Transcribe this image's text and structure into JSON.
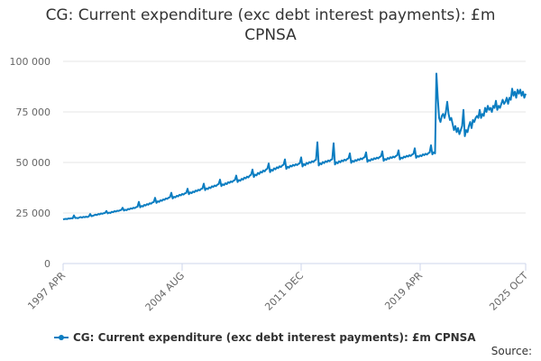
{
  "chart_data": {
    "type": "line",
    "title": "CG: Current expenditure (exc debt interest payments): £m CPNSA",
    "source": "Source:",
    "ylim": [
      0,
      100000
    ],
    "yticks": [
      0,
      {
        "value": 25000,
        "label": "25 000"
      },
      {
        "value": 50000,
        "label": "50 000"
      },
      {
        "value": 75000,
        "label": "75 000"
      },
      {
        "value": 100000,
        "label": "100 000"
      }
    ],
    "grid": true,
    "categories": [
      "1997 APR",
      null,
      null,
      null,
      null,
      null,
      null,
      null,
      null,
      null,
      null,
      null,
      null,
      null,
      null,
      null,
      null,
      null,
      null,
      null,
      null,
      null,
      null,
      null,
      null,
      null,
      null,
      null,
      null,
      null,
      null,
      null,
      null,
      null,
      null,
      null,
      null,
      null,
      null,
      null,
      null,
      null,
      null,
      null,
      null,
      null,
      null,
      null,
      null,
      null,
      null,
      null,
      null,
      null,
      null,
      null,
      null,
      null,
      null,
      null,
      null,
      null,
      null,
      null,
      null,
      null,
      null,
      null,
      null,
      null,
      null,
      null,
      null,
      null,
      null,
      null,
      null,
      null,
      null,
      null,
      null,
      null,
      null,
      null,
      null,
      null,
      null,
      null,
      "2004 AUG",
      null,
      null,
      null,
      null,
      null,
      null,
      null,
      null,
      null,
      null,
      null,
      null,
      null,
      null,
      null,
      null,
      null,
      null,
      null,
      null,
      null,
      null,
      null,
      null,
      null,
      null,
      null,
      null,
      null,
      null,
      null,
      null,
      null,
      null,
      null,
      null,
      null,
      null,
      null,
      null,
      null,
      null,
      null,
      null,
      null,
      null,
      null,
      null,
      null,
      null,
      null,
      null,
      null,
      null,
      null,
      null,
      null,
      null,
      null,
      null,
      null,
      null,
      null,
      null,
      null,
      null,
      null,
      null,
      null,
      null,
      null,
      null,
      null,
      null,
      null,
      null,
      null,
      null,
      null,
      null,
      null,
      null,
      null,
      null,
      null,
      null,
      null,
      "2011 DEC",
      null,
      null,
      null,
      null,
      null,
      null,
      null,
      null,
      null,
      null,
      null,
      null,
      null,
      null,
      null,
      null,
      null,
      null,
      null,
      null,
      null,
      null,
      null,
      null,
      null,
      null,
      null,
      null,
      null,
      null,
      null,
      null,
      null,
      null,
      null,
      null,
      null,
      null,
      null,
      null,
      null,
      null,
      null,
      null,
      null,
      null,
      null,
      null,
      null,
      null,
      null,
      null,
      null,
      null,
      null,
      null,
      null,
      null,
      null,
      null,
      null,
      null,
      null,
      null,
      null,
      null,
      null,
      null,
      null,
      null,
      null,
      null,
      null,
      null,
      null,
      null,
      null,
      null,
      null,
      null,
      null,
      null,
      null,
      null,
      null,
      null,
      null,
      "2019 APR",
      null,
      null,
      null,
      null,
      null,
      null,
      null,
      null,
      null,
      null,
      null,
      null,
      null,
      null,
      null,
      null,
      null,
      null,
      null,
      null,
      null,
      null,
      null,
      null,
      null,
      null,
      null,
      null,
      null,
      null,
      null,
      null,
      null,
      null,
      null,
      null,
      null,
      null,
      null,
      null,
      null,
      null,
      null,
      null,
      null,
      null,
      null,
      null,
      null,
      null,
      null,
      null,
      null,
      null,
      null,
      null,
      null,
      null,
      null,
      null,
      null,
      null,
      null,
      null,
      null,
      null,
      null,
      null,
      null,
      null,
      null,
      null,
      null,
      null,
      null,
      null,
      null,
      "2025 OCT"
    ],
    "series": [
      {
        "name": "CG: Current expenditure (exc debt interest payments): £m CPNSA",
        "color": "#0b7dc1",
        "values": [
          21800,
          22000,
          22100,
          22000,
          22300,
          22200,
          22400,
          22300,
          23800,
          22500,
          22600,
          22400,
          22800,
          23000,
          22700,
          23100,
          22900,
          23200,
          23000,
          23300,
          24500,
          23400,
          23600,
          23900,
          24200,
          24000,
          24500,
          24300,
          24800,
          24600,
          24900,
          25000,
          26000,
          24800,
          25200,
          25000,
          25600,
          25400,
          25900,
          25700,
          26100,
          26000,
          26300,
          26500,
          27600,
          26200,
          26600,
          26400,
          27000,
          26800,
          27300,
          27100,
          27600,
          27400,
          27900,
          28100,
          30500,
          27800,
          28500,
          28200,
          29000,
          28700,
          29400,
          29100,
          29800,
          29600,
          30200,
          30400,
          32500,
          30000,
          30800,
          30500,
          31300,
          31000,
          31700,
          31500,
          32200,
          32000,
          32600,
          32800,
          35000,
          32200,
          33000,
          32700,
          33500,
          33200,
          34000,
          33700,
          34400,
          34100,
          34700,
          34900,
          37000,
          34300,
          35200,
          34800,
          35600,
          35300,
          36100,
          35800,
          36500,
          36200,
          36900,
          37100,
          39500,
          36300,
          37200,
          36800,
          37700,
          37300,
          38200,
          37900,
          38600,
          38300,
          39000,
          39300,
          41500,
          38300,
          39200,
          38800,
          39700,
          39300,
          40200,
          39900,
          40600,
          40300,
          41000,
          41300,
          43500,
          40300,
          41300,
          40900,
          41900,
          41500,
          42500,
          42100,
          43000,
          42600,
          43500,
          43900,
          46500,
          42800,
          44000,
          43600,
          44800,
          44300,
          45400,
          45000,
          46000,
          45600,
          46500,
          46900,
          49500,
          45200,
          46400,
          45900,
          47100,
          46600,
          47600,
          47200,
          48100,
          47700,
          48500,
          48900,
          51500,
          46800,
          47900,
          47400,
          48400,
          48000,
          48800,
          48400,
          49100,
          48700,
          49300,
          49600,
          52500,
          48000,
          49200,
          48600,
          49800,
          49300,
          50200,
          49800,
          50600,
          50200,
          51000,
          51300,
          60000,
          48500,
          49600,
          49100,
          50200,
          49700,
          50600,
          50200,
          51000,
          50600,
          51300,
          51600,
          59500,
          49000,
          50100,
          49600,
          50600,
          50100,
          51000,
          50600,
          51400,
          51000,
          51700,
          52000,
          54500,
          49800,
          50800,
          50300,
          51200,
          50800,
          51600,
          51200,
          52000,
          51600,
          52300,
          52600,
          55000,
          50300,
          51200,
          50800,
          51700,
          51300,
          52100,
          51700,
          52400,
          52000,
          52700,
          53000,
          55500,
          50800,
          51700,
          51300,
          52200,
          51800,
          52600,
          52200,
          52900,
          52500,
          53200,
          53500,
          56000,
          51500,
          52400,
          52000,
          52900,
          52500,
          53300,
          52900,
          53600,
          53200,
          53900,
          54200,
          57000,
          52300,
          53200,
          52800,
          53500,
          53100,
          54000,
          53600,
          54300,
          53900,
          54600,
          54900,
          58500,
          54000,
          55000,
          54500,
          94000,
          82000,
          72000,
          70000,
          73000,
          74000,
          72000,
          75000,
          80000,
          74000,
          71000,
          72000,
          69000,
          66000,
          68000,
          65000,
          67000,
          64000,
          66000,
          68000,
          76000,
          63000,
          66000,
          65000,
          68000,
          70000,
          67000,
          71000,
          70000,
          72000,
          73000,
          72000,
          76000,
          72000,
          74000,
          73000,
          77000,
          75000,
          78000,
          76000,
          77000,
          75000,
          78000,
          77000,
          80500,
          76000,
          78000,
          77000,
          79000,
          81000,
          79000,
          80000,
          82000,
          79000,
          82000,
          81000,
          86500,
          83000,
          85000,
          82000,
          86000,
          84000,
          86000,
          83000,
          85000,
          82000,
          84000
        ]
      }
    ]
  }
}
